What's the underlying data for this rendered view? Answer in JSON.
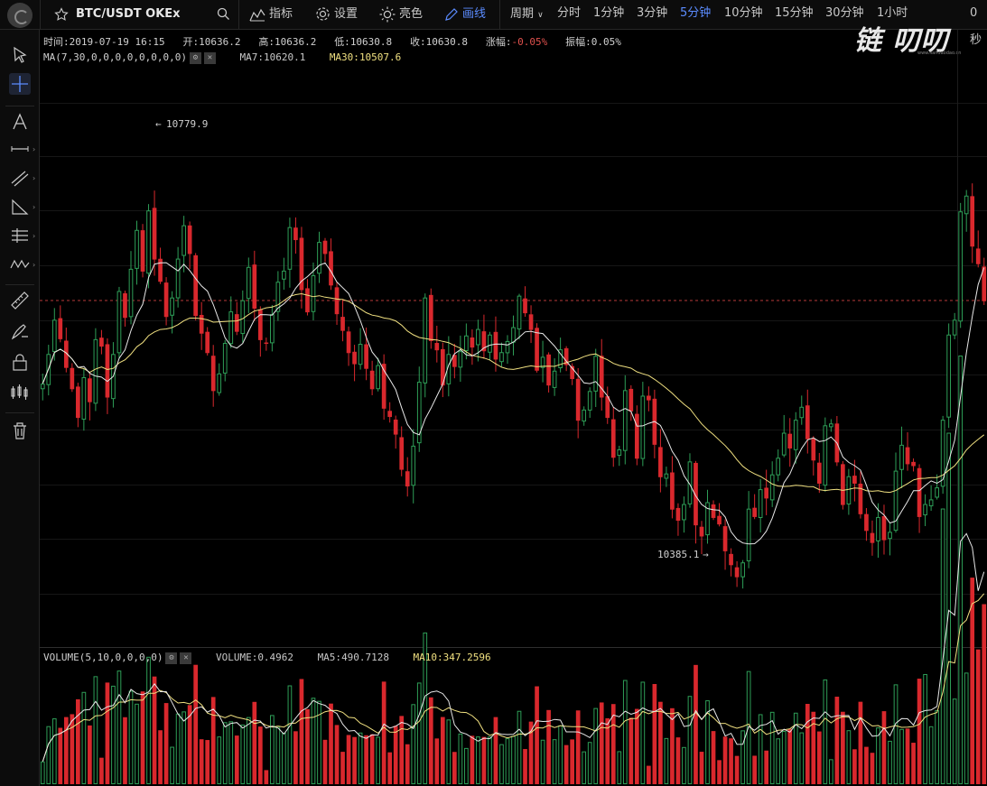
{
  "topbar": {
    "symbol": "BTC/USDT OKEx",
    "indicators": "指标",
    "settings": "设置",
    "theme": "亮色",
    "draw": "画线",
    "period_label": "周期",
    "periods": [
      "分时",
      "1分钟",
      "3分钟",
      "5分钟",
      "10分钟",
      "15分钟",
      "30分钟",
      "1小时"
    ],
    "active_period": "5分钟",
    "countdown": "0秒"
  },
  "watermark": {
    "text": "链 叨叨",
    "sub": "www.liandaodao.cn"
  },
  "ohlc": {
    "time_label": "时间:",
    "time": "2019-07-19 16:15",
    "open_label": "开:",
    "open": "10636.2",
    "high_label": "高:",
    "high": "10636.2",
    "low_label": "低:",
    "low": "10630.8",
    "close_label": "收:",
    "close": "10630.8",
    "change_label": "涨幅:",
    "change": "-0.05%",
    "amp_label": "振幅:",
    "amp": "0.05%"
  },
  "ma": {
    "params": "MA(7,30,0,0,0,0,0,0,0,0)",
    "ma7_label": "MA7:",
    "ma7": "10620.1",
    "ma30_label": "MA30:",
    "ma30": "10507.6"
  },
  "volume_legend": {
    "params": "VOLUME(5,10,0,0,0,0)",
    "vol_label": "VOLUME:",
    "vol": "0.4962",
    "ma5_label": "MA5:",
    "ma5": "490.7128",
    "ma10_label": "MA10:",
    "ma10": "347.2596"
  },
  "annotations": {
    "max": "10779.9",
    "min": "10385.1"
  },
  "colors": {
    "up": "#2e9e57",
    "down": "#d9282d",
    "ma7": "#e8e8e8",
    "ma30": "#f0e080",
    "accent": "#5b8cff"
  },
  "chart_data": {
    "type": "candlestick",
    "price_range": [
      10280,
      10850
    ],
    "volume_range": [
      0,
      1300
    ],
    "current_price": 10630.8,
    "close": [
      10541,
      10573,
      10610,
      10589,
      10558,
      10535,
      10504,
      10548,
      10521,
      10589,
      10581,
      10526,
      10573,
      10641,
      10612,
      10665,
      10707,
      10662,
      10728,
      10675,
      10651,
      10613,
      10634,
      10676,
      10712,
      10681,
      10614,
      10595,
      10574,
      10533,
      10552,
      10585,
      10619,
      10597,
      10631,
      10667,
      10622,
      10588,
      10584,
      10616,
      10651,
      10663,
      10710,
      10696,
      10642,
      10618,
      10658,
      10694,
      10681,
      10647,
      10616,
      10598,
      10574,
      10562,
      10584,
      10557,
      10535,
      10561,
      10514,
      10505,
      10486,
      10448,
      10430,
      10474,
      10543,
      10634,
      10587,
      10577,
      10539,
      10573,
      10559,
      10576,
      10593,
      10580,
      10600,
      10576,
      10594,
      10567,
      10575,
      10587,
      10602,
      10636,
      10617,
      10599,
      10555,
      10570,
      10539,
      10555,
      10578,
      10561,
      10546,
      10501,
      10513,
      10533,
      10571,
      10526,
      10504,
      10461,
      10470,
      10534,
      10511,
      10460,
      10528,
      10523,
      10475,
      10440,
      10444,
      10405,
      10393,
      10411,
      10457,
      10388,
      10376,
      10413,
      10396,
      10389,
      10360,
      10345,
      10332,
      10348,
      10406,
      10397,
      10427,
      10417,
      10443,
      10461,
      10488,
      10471,
      10502,
      10516,
      10481,
      10458,
      10433,
      10496,
      10498,
      10456,
      10410,
      10441,
      10433,
      10400,
      10382,
      10369,
      10397,
      10372,
      10381,
      10447,
      10475,
      10454,
      10452,
      10397,
      10411,
      10416,
      10429,
      10502,
      10594,
      10610,
      10727,
      10744,
      10689,
      10670,
      10630
    ]
  }
}
